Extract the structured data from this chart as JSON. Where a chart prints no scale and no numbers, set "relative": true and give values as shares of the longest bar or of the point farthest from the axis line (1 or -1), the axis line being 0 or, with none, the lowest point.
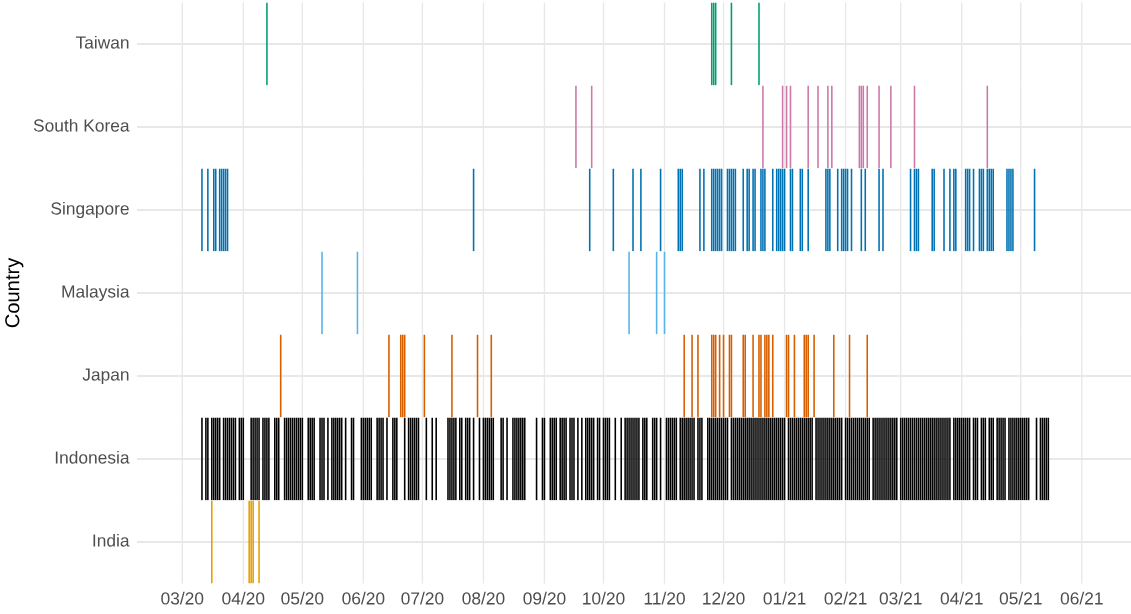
{
  "chart_data": [
    {
      "type": "bar",
      "relative": true,
      "ylabel": "Taiwan",
      "color": "#009e73",
      "grid": "x",
      "tick_labels": false,
      "ref_lines": [
        {
          "axis": "y",
          "value": 0.5,
          "color": "#e0e0e0"
        }
      ],
      "xlim": [
        "2020-02-07",
        "2021-06-26"
      ],
      "xticks": [
        {
          "value": "2020-03-01",
          "label": null
        },
        {
          "value": "2020-04-01",
          "label": null
        },
        {
          "value": "2020-05-01",
          "label": null
        },
        {
          "value": "2020-06-01",
          "label": null
        },
        {
          "value": "2020-07-01",
          "label": null
        },
        {
          "value": "2020-08-01",
          "label": null
        },
        {
          "value": "2020-09-01",
          "label": null
        },
        {
          "value": "2020-10-01",
          "label": null
        },
        {
          "value": "2020-11-01",
          "label": null
        },
        {
          "value": "2020-12-01",
          "label": null
        },
        {
          "value": "2021-01-01",
          "label": null
        },
        {
          "value": "2021-02-01",
          "label": null
        },
        {
          "value": "2021-03-01",
          "label": null
        },
        {
          "value": "2021-04-01",
          "label": null
        },
        {
          "value": "2021-05-01",
          "label": null
        },
        {
          "value": "2021-06-01",
          "label": null
        }
      ],
      "x": [
        "2020-04-13",
        "2020-11-25",
        "2020-11-26",
        "2020-11-27",
        "2020-12-05",
        "2020-12-19"
      ],
      "values": [
        1,
        1,
        1,
        1,
        1,
        1
      ]
    },
    {
      "type": "bar",
      "relative": true,
      "ylabel": "South Korea",
      "color": "#cc79a7",
      "grid": "x",
      "tick_labels": false,
      "ref_lines": [
        {
          "axis": "y",
          "value": 0.5,
          "color": "#e0e0e0"
        }
      ],
      "xlim": [
        "2020-02-07",
        "2021-06-26"
      ],
      "xticks": [
        {
          "value": "2020-03-01",
          "label": null
        },
        {
          "value": "2020-04-01",
          "label": null
        },
        {
          "value": "2020-05-01",
          "label": null
        },
        {
          "value": "2020-06-01",
          "label": null
        },
        {
          "value": "2020-07-01",
          "label": null
        },
        {
          "value": "2020-08-01",
          "label": null
        },
        {
          "value": "2020-09-01",
          "label": null
        },
        {
          "value": "2020-10-01",
          "label": null
        },
        {
          "value": "2020-11-01",
          "label": null
        },
        {
          "value": "2020-12-01",
          "label": null
        },
        {
          "value": "2021-01-01",
          "label": null
        },
        {
          "value": "2021-02-01",
          "label": null
        },
        {
          "value": "2021-03-01",
          "label": null
        },
        {
          "value": "2021-04-01",
          "label": null
        },
        {
          "value": "2021-05-01",
          "label": null
        },
        {
          "value": "2021-06-01",
          "label": null
        }
      ],
      "x": [
        "2020-09-17",
        "2020-09-25",
        "2020-12-21",
        "2020-12-31",
        "2021-01-02",
        "2021-01-04",
        "2021-01-13",
        "2021-01-18",
        "2021-01-23",
        "2021-01-25",
        "2021-02-08",
        "2021-02-09",
        "2021-02-10",
        "2021-02-12",
        "2021-02-18",
        "2021-02-24",
        "2021-03-08",
        "2021-04-14"
      ],
      "values": [
        1,
        1,
        1,
        1,
        1,
        1,
        1,
        1,
        1,
        1,
        1,
        1,
        1,
        1,
        1,
        1,
        1,
        1
      ]
    },
    {
      "type": "bar",
      "relative": true,
      "ylabel": "Singapore",
      "color": "#0072b2",
      "grid": "x",
      "tick_labels": false,
      "ref_lines": [
        {
          "axis": "y",
          "value": 0.5,
          "color": "#e0e0e0"
        }
      ],
      "xlim": [
        "2020-02-07",
        "2021-06-26"
      ],
      "xticks": [
        {
          "value": "2020-03-01",
          "label": null
        },
        {
          "value": "2020-04-01",
          "label": null
        },
        {
          "value": "2020-05-01",
          "label": null
        },
        {
          "value": "2020-06-01",
          "label": null
        },
        {
          "value": "2020-07-01",
          "label": null
        },
        {
          "value": "2020-08-01",
          "label": null
        },
        {
          "value": "2020-09-01",
          "label": null
        },
        {
          "value": "2020-10-01",
          "label": null
        },
        {
          "value": "2020-11-01",
          "label": null
        },
        {
          "value": "2020-12-01",
          "label": null
        },
        {
          "value": "2021-01-01",
          "label": null
        },
        {
          "value": "2021-02-01",
          "label": null
        },
        {
          "value": "2021-03-01",
          "label": null
        },
        {
          "value": "2021-04-01",
          "label": null
        },
        {
          "value": "2021-05-01",
          "label": null
        },
        {
          "value": "2021-06-01",
          "label": null
        }
      ],
      "x": [
        "2020-03-11",
        "2020-03-14",
        "2020-03-17",
        "2020-03-18",
        "2020-03-20",
        "2020-03-21",
        "2020-03-22",
        "2020-03-23",
        "2020-03-24",
        "2020-07-27",
        "2020-09-24",
        "2020-10-06",
        "2020-10-16",
        "2020-10-20",
        "2020-10-30",
        "2020-11-08",
        "2020-11-09",
        "2020-11-10",
        "2020-11-19",
        "2020-11-21",
        "2020-11-25",
        "2020-11-26",
        "2020-11-27",
        "2020-11-28",
        "2020-11-29",
        "2020-11-30",
        "2020-12-03",
        "2020-12-04",
        "2020-12-05",
        "2020-12-06",
        "2020-12-07",
        "2020-12-11",
        "2020-12-13",
        "2020-12-14",
        "2020-12-16",
        "2020-12-17",
        "2020-12-20",
        "2020-12-21",
        "2020-12-22",
        "2020-12-26",
        "2020-12-28",
        "2020-12-29",
        "2020-12-30",
        "2020-12-31",
        "2021-01-01",
        "2021-01-04",
        "2021-01-05",
        "2021-01-09",
        "2021-01-10",
        "2021-01-13",
        "2021-01-22",
        "2021-01-23",
        "2021-01-24",
        "2021-01-28",
        "2021-01-30",
        "2021-01-31",
        "2021-02-01",
        "2021-02-02",
        "2021-02-04",
        "2021-02-09",
        "2021-02-11",
        "2021-02-18",
        "2021-02-20",
        "2021-03-06",
        "2021-03-08",
        "2021-03-09",
        "2021-03-10",
        "2021-03-17",
        "2021-03-18",
        "2021-03-23",
        "2021-03-26",
        "2021-03-28",
        "2021-03-29",
        "2021-04-03",
        "2021-04-04",
        "2021-04-05",
        "2021-04-07",
        "2021-04-10",
        "2021-04-11",
        "2021-04-12",
        "2021-04-14",
        "2021-04-15",
        "2021-04-16",
        "2021-04-17",
        "2021-04-24",
        "2021-04-25",
        "2021-04-26",
        "2021-04-27",
        "2021-05-08"
      ],
      "values": [
        1,
        1,
        1,
        1,
        1,
        1,
        1,
        1,
        1,
        1,
        1,
        1,
        1,
        1,
        1,
        1,
        1,
        1,
        1,
        1,
        1,
        1,
        1,
        1,
        1,
        1,
        1,
        1,
        1,
        1,
        1,
        1,
        1,
        1,
        1,
        1,
        1,
        1,
        1,
        1,
        1,
        1,
        1,
        1,
        1,
        1,
        1,
        1,
        1,
        1,
        1,
        1,
        1,
        1,
        1,
        1,
        1,
        1,
        1,
        1,
        1,
        1,
        1,
        1,
        1,
        1,
        1,
        1,
        1,
        1,
        1,
        1,
        1,
        1,
        1,
        1,
        1,
        1,
        1,
        1,
        1,
        1,
        1,
        1,
        1,
        1,
        1,
        1,
        1
      ]
    },
    {
      "type": "bar",
      "relative": true,
      "ylabel": "Malaysia",
      "color": "#56b4e9",
      "grid": "x",
      "tick_labels": false,
      "ref_lines": [
        {
          "axis": "y",
          "value": 0.5,
          "color": "#e0e0e0"
        }
      ],
      "annotations": [
        "Country"
      ],
      "xlim": [
        "2020-02-07",
        "2021-06-26"
      ],
      "xticks": [
        {
          "value": "2020-03-01",
          "label": null
        },
        {
          "value": "2020-04-01",
          "label": null
        },
        {
          "value": "2020-05-01",
          "label": null
        },
        {
          "value": "2020-06-01",
          "label": null
        },
        {
          "value": "2020-07-01",
          "label": null
        },
        {
          "value": "2020-08-01",
          "label": null
        },
        {
          "value": "2020-09-01",
          "label": null
        },
        {
          "value": "2020-10-01",
          "label": null
        },
        {
          "value": "2020-11-01",
          "label": null
        },
        {
          "value": "2020-12-01",
          "label": null
        },
        {
          "value": "2021-01-01",
          "label": null
        },
        {
          "value": "2021-02-01",
          "label": null
        },
        {
          "value": "2021-03-01",
          "label": null
        },
        {
          "value": "2021-04-01",
          "label": null
        },
        {
          "value": "2021-05-01",
          "label": null
        },
        {
          "value": "2021-06-01",
          "label": null
        }
      ],
      "x": [
        "2020-05-11",
        "2020-05-29",
        "2020-10-14",
        "2020-10-28",
        "2020-11-01"
      ],
      "values": [
        1,
        1,
        1,
        1,
        1
      ]
    },
    {
      "type": "bar",
      "relative": true,
      "ylabel": "Japan",
      "color": "#d55e00",
      "grid": "x",
      "tick_labels": false,
      "ref_lines": [
        {
          "axis": "y",
          "value": 0.5,
          "color": "#e0e0e0"
        }
      ],
      "xlim": [
        "2020-02-07",
        "2021-06-26"
      ],
      "xticks": [
        {
          "value": "2020-03-01",
          "label": null
        },
        {
          "value": "2020-04-01",
          "label": null
        },
        {
          "value": "2020-05-01",
          "label": null
        },
        {
          "value": "2020-06-01",
          "label": null
        },
        {
          "value": "2020-07-01",
          "label": null
        },
        {
          "value": "2020-08-01",
          "label": null
        },
        {
          "value": "2020-09-01",
          "label": null
        },
        {
          "value": "2020-10-01",
          "label": null
        },
        {
          "value": "2020-11-01",
          "label": null
        },
        {
          "value": "2020-12-01",
          "label": null
        },
        {
          "value": "2021-01-01",
          "label": null
        },
        {
          "value": "2021-02-01",
          "label": null
        },
        {
          "value": "2021-03-01",
          "label": null
        },
        {
          "value": "2021-04-01",
          "label": null
        },
        {
          "value": "2021-05-01",
          "label": null
        },
        {
          "value": "2021-06-01",
          "label": null
        }
      ],
      "x": [
        "2020-04-20",
        "2020-06-14",
        "2020-06-20",
        "2020-06-21",
        "2020-06-22",
        "2020-07-02",
        "2020-07-16",
        "2020-07-29",
        "2020-08-05",
        "2020-11-11",
        "2020-11-15",
        "2020-11-18",
        "2020-11-25",
        "2020-11-26",
        "2020-11-27",
        "2020-11-29",
        "2020-12-01",
        "2020-12-04",
        "2020-12-05",
        "2020-12-11",
        "2020-12-12",
        "2020-12-16",
        "2020-12-19",
        "2020-12-20",
        "2020-12-22",
        "2020-12-23",
        "2020-12-24",
        "2020-12-26",
        "2021-01-02",
        "2021-01-03",
        "2021-01-06",
        "2021-01-11",
        "2021-01-12",
        "2021-01-13",
        "2021-01-16",
        "2021-01-26",
        "2021-02-03",
        "2021-02-12"
      ],
      "values": [
        1,
        1,
        1,
        1,
        1,
        1,
        1,
        1,
        1,
        1,
        1,
        1,
        1,
        1,
        1,
        1,
        1,
        1,
        1,
        1,
        1,
        1,
        1,
        1,
        1,
        1,
        1,
        1,
        1,
        1,
        1,
        1,
        1,
        1,
        1,
        1,
        1,
        1
      ]
    },
    {
      "type": "bar",
      "relative": true,
      "ylabel": "Indonesia",
      "color": "#000000",
      "grid": "x",
      "tick_labels": false,
      "ref_lines": [
        {
          "axis": "y",
          "value": 0.5,
          "color": "#e0e0e0"
        }
      ],
      "xlim": [
        "2020-02-07",
        "2021-06-26"
      ],
      "xticks": [
        {
          "value": "2020-03-01",
          "label": null
        },
        {
          "value": "2020-04-01",
          "label": null
        },
        {
          "value": "2020-05-01",
          "label": null
        },
        {
          "value": "2020-06-01",
          "label": null
        },
        {
          "value": "2020-07-01",
          "label": null
        },
        {
          "value": "2020-08-01",
          "label": null
        },
        {
          "value": "2020-09-01",
          "label": null
        },
        {
          "value": "2020-10-01",
          "label": null
        },
        {
          "value": "2020-11-01",
          "label": null
        },
        {
          "value": "2020-12-01",
          "label": null
        },
        {
          "value": "2021-01-01",
          "label": null
        },
        {
          "value": "2021-02-01",
          "label": null
        },
        {
          "value": "2021-03-01",
          "label": null
        },
        {
          "value": "2021-04-01",
          "label": null
        },
        {
          "value": "2021-05-01",
          "label": null
        },
        {
          "value": "2021-06-01",
          "label": null
        }
      ],
      "x": [
        "2020-03-11",
        "2020-03-13",
        "2020-03-14",
        "2020-03-16",
        "2020-03-17",
        "2020-03-18",
        "2020-03-19",
        "2020-03-20",
        "2020-03-22",
        "2020-03-23",
        "2020-03-24",
        "2020-03-25",
        "2020-03-26",
        "2020-03-27",
        "2020-03-28",
        "2020-03-30",
        "2020-03-31",
        "2020-04-01",
        "2020-04-05",
        "2020-04-06",
        "2020-04-07",
        "2020-04-08",
        "2020-04-09",
        "2020-04-11",
        "2020-04-12",
        "2020-04-13",
        "2020-04-14",
        "2020-04-17",
        "2020-04-18",
        "2020-04-19",
        "2020-04-22",
        "2020-04-23",
        "2020-04-24",
        "2020-04-25",
        "2020-04-26",
        "2020-04-27",
        "2020-04-28",
        "2020-04-29",
        "2020-04-30",
        "2020-05-01",
        "2020-05-04",
        "2020-05-05",
        "2020-05-06",
        "2020-05-07",
        "2020-05-10",
        "2020-05-11",
        "2020-05-12",
        "2020-05-14",
        "2020-05-16",
        "2020-05-17",
        "2020-05-18",
        "2020-05-19",
        "2020-05-20",
        "2020-05-21",
        "2020-05-23",
        "2020-05-26",
        "2020-05-27",
        "2020-05-31",
        "2020-06-01",
        "2020-06-02",
        "2020-06-03",
        "2020-06-04",
        "2020-06-05",
        "2020-06-08",
        "2020-06-09",
        "2020-06-10",
        "2020-06-11",
        "2020-06-13",
        "2020-06-16",
        "2020-06-17",
        "2020-06-18",
        "2020-06-22",
        "2020-06-24",
        "2020-06-25",
        "2020-06-26",
        "2020-06-27",
        "2020-06-28",
        "2020-06-29",
        "2020-07-03",
        "2020-07-06",
        "2020-07-08",
        "2020-07-14",
        "2020-07-15",
        "2020-07-16",
        "2020-07-17",
        "2020-07-18",
        "2020-07-20",
        "2020-07-21",
        "2020-07-23",
        "2020-07-24",
        "2020-07-25",
        "2020-07-27",
        "2020-07-30",
        "2020-08-01",
        "2020-08-02",
        "2020-08-03",
        "2020-08-04",
        "2020-08-05",
        "2020-08-06",
        "2020-08-10",
        "2020-08-11",
        "2020-08-13",
        "2020-08-16",
        "2020-08-17",
        "2020-08-18",
        "2020-08-19",
        "2020-08-20",
        "2020-08-21",
        "2020-08-22",
        "2020-08-28",
        "2020-08-31",
        "2020-09-01",
        "2020-09-04",
        "2020-09-05",
        "2020-09-06",
        "2020-09-07",
        "2020-09-09",
        "2020-09-10",
        "2020-09-11",
        "2020-09-12",
        "2020-09-14",
        "2020-09-15",
        "2020-09-16",
        "2020-09-18",
        "2020-09-20",
        "2020-09-22",
        "2020-09-23",
        "2020-09-24",
        "2020-09-25",
        "2020-09-26",
        "2020-09-28",
        "2020-09-29",
        "2020-10-01",
        "2020-10-02",
        "2020-10-03",
        "2020-10-04",
        "2020-10-07",
        "2020-10-10",
        "2020-10-12",
        "2020-10-13",
        "2020-10-14",
        "2020-10-15",
        "2020-10-16",
        "2020-10-17",
        "2020-10-18",
        "2020-10-19",
        "2020-10-21",
        "2020-10-22",
        "2020-10-23",
        "2020-10-26",
        "2020-10-27",
        "2020-10-28",
        "2020-10-30",
        "2020-11-02",
        "2020-11-03",
        "2020-11-04",
        "2020-11-05",
        "2020-11-06",
        "2020-11-07",
        "2020-11-09",
        "2020-11-10",
        "2020-11-11",
        "2020-11-12",
        "2020-11-13",
        "2020-11-14",
        "2020-11-15",
        "2020-11-16",
        "2020-11-18",
        "2020-11-19",
        "2020-11-20",
        "2020-11-23",
        "2020-11-24",
        "2020-11-25",
        "2020-11-26",
        "2020-11-27",
        "2020-11-28",
        "2020-11-29",
        "2020-11-30",
        "2020-12-01",
        "2020-12-02",
        "2020-12-03",
        "2020-12-05",
        "2020-12-06",
        "2020-12-07",
        "2020-12-08",
        "2020-12-09",
        "2020-12-10",
        "2020-12-11",
        "2020-12-12",
        "2020-12-13",
        "2020-12-14",
        "2020-12-15",
        "2020-12-16",
        "2020-12-17",
        "2020-12-18",
        "2020-12-19",
        "2020-12-20",
        "2020-12-21",
        "2020-12-22",
        "2020-12-23",
        "2020-12-24",
        "2020-12-25",
        "2020-12-26",
        "2020-12-27",
        "2020-12-28",
        "2020-12-29",
        "2020-12-30",
        "2020-12-31",
        "2021-01-01",
        "2021-01-03",
        "2021-01-04",
        "2021-01-05",
        "2021-01-06",
        "2021-01-07",
        "2021-01-08",
        "2021-01-09",
        "2021-01-10",
        "2021-01-11",
        "2021-01-12",
        "2021-01-13",
        "2021-01-14",
        "2021-01-15",
        "2021-01-17",
        "2021-01-18",
        "2021-01-19",
        "2021-01-20",
        "2021-01-21",
        "2021-01-22",
        "2021-01-23",
        "2021-01-24",
        "2021-01-25",
        "2021-01-26",
        "2021-01-27",
        "2021-01-28",
        "2021-01-29",
        "2021-01-30",
        "2021-02-01",
        "2021-02-02",
        "2021-02-03",
        "2021-02-04",
        "2021-02-05",
        "2021-02-06",
        "2021-02-07",
        "2021-02-08",
        "2021-02-09",
        "2021-02-10",
        "2021-02-11",
        "2021-02-12",
        "2021-02-13",
        "2021-02-15",
        "2021-02-16",
        "2021-02-17",
        "2021-02-18",
        "2021-02-19",
        "2021-02-20",
        "2021-02-21",
        "2021-02-22",
        "2021-02-23",
        "2021-02-24",
        "2021-02-25",
        "2021-02-26",
        "2021-02-27",
        "2021-03-01",
        "2021-03-02",
        "2021-03-03",
        "2021-03-04",
        "2021-03-05",
        "2021-03-06",
        "2021-03-07",
        "2021-03-08",
        "2021-03-09",
        "2021-03-10",
        "2021-03-11",
        "2021-03-12",
        "2021-03-13",
        "2021-03-14",
        "2021-03-15",
        "2021-03-16",
        "2021-03-17",
        "2021-03-18",
        "2021-03-19",
        "2021-03-20",
        "2021-03-21",
        "2021-03-22",
        "2021-03-23",
        "2021-03-24",
        "2021-03-25",
        "2021-03-26",
        "2021-03-28",
        "2021-03-29",
        "2021-03-30",
        "2021-03-31",
        "2021-04-01",
        "2021-04-02",
        "2021-04-03",
        "2021-04-04",
        "2021-04-05",
        "2021-04-07",
        "2021-04-08",
        "2021-04-09",
        "2021-04-11",
        "2021-04-12",
        "2021-04-13",
        "2021-04-15",
        "2021-04-16",
        "2021-04-17",
        "2021-04-19",
        "2021-04-20",
        "2021-04-21",
        "2021-04-22",
        "2021-04-23",
        "2021-04-25",
        "2021-04-26",
        "2021-04-27",
        "2021-04-28",
        "2021-04-29",
        "2021-04-30",
        "2021-05-01",
        "2021-05-02",
        "2021-05-03",
        "2021-05-04",
        "2021-05-05",
        "2021-05-09",
        "2021-05-11",
        "2021-05-12",
        "2021-05-13",
        "2021-05-14",
        "2021-05-15"
      ],
      "values": [
        1,
        1,
        1,
        1,
        1,
        1,
        1,
        1,
        1,
        1,
        1,
        1,
        1,
        1,
        1,
        1,
        1,
        1,
        1,
        1,
        1,
        1,
        1,
        1,
        1,
        1,
        1,
        1,
        1,
        1,
        1,
        1,
        1,
        1,
        1,
        1,
        1,
        1,
        1,
        1,
        1,
        1,
        1,
        1,
        1,
        1,
        1,
        1,
        1,
        1,
        1,
        1,
        1,
        1,
        1,
        1,
        1,
        1,
        1,
        1,
        1,
        1,
        1,
        1,
        1,
        1,
        1,
        1,
        1,
        1,
        1,
        1,
        1,
        1,
        1,
        1,
        1,
        1,
        1,
        1,
        1,
        1,
        1,
        1,
        1,
        1,
        1,
        1,
        1,
        1,
        1,
        1,
        1,
        1,
        1,
        1,
        1,
        1,
        1,
        1,
        1,
        1,
        1,
        1,
        1,
        1,
        1,
        1,
        1,
        1,
        1,
        1,
        1,
        1,
        1,
        1,
        1,
        1,
        1,
        1,
        1,
        1,
        1,
        1,
        1,
        1,
        1,
        1,
        1,
        1,
        1,
        1,
        1,
        1,
        1,
        1,
        1,
        1,
        1,
        1,
        1,
        1,
        1,
        1,
        1,
        1,
        1,
        1,
        1,
        1,
        1,
        1,
        1,
        1,
        1,
        1,
        1,
        1,
        1,
        1,
        1,
        1,
        1,
        1,
        1,
        1,
        1,
        1,
        1,
        1,
        1,
        1,
        1,
        1,
        1,
        1,
        1,
        1,
        1,
        1,
        1,
        1,
        1,
        1,
        1,
        1,
        1,
        1,
        1,
        1,
        1,
        1,
        1,
        1,
        1,
        1,
        1,
        1,
        1,
        1,
        1,
        1,
        1,
        1,
        1,
        1,
        1,
        1,
        1,
        1,
        1,
        1,
        1,
        1,
        1,
        1,
        1,
        1,
        1,
        1,
        1,
        1,
        1,
        1,
        1,
        1,
        1,
        1,
        1,
        1,
        1,
        1,
        1,
        1,
        1,
        1,
        1,
        1,
        1,
        1,
        1,
        1,
        1,
        1,
        1,
        1,
        1,
        1,
        1,
        1,
        1,
        1,
        1,
        1,
        1,
        1,
        1,
        1,
        1,
        1,
        1,
        1,
        1,
        1,
        1,
        1,
        1,
        1,
        1,
        1,
        1,
        1,
        1,
        1,
        1,
        1,
        1,
        1,
        1,
        1,
        1,
        1,
        1,
        1,
        1,
        1,
        1,
        1,
        1,
        1,
        1,
        1,
        1,
        1,
        1,
        1,
        1,
        1,
        1,
        1,
        1,
        1,
        1,
        1,
        1,
        1,
        1,
        1,
        1,
        1,
        1,
        1,
        1,
        1,
        1,
        1,
        1,
        1,
        1,
        1,
        1,
        1,
        1,
        1,
        1,
        1,
        1,
        1
      ]
    },
    {
      "type": "bar",
      "relative": true,
      "ylabel": "India",
      "color": "#e69f00",
      "grid": "x",
      "tick_labels": "x",
      "ref_lines": [
        {
          "axis": "y",
          "value": 0.5,
          "color": "#e0e0e0"
        }
      ],
      "xlim": [
        "2020-02-07",
        "2021-06-26"
      ],
      "xticks": [
        {
          "value": "2020-03-01",
          "label": "03/20"
        },
        {
          "value": "2020-04-01",
          "label": "04/20"
        },
        {
          "value": "2020-05-01",
          "label": "05/20"
        },
        {
          "value": "2020-06-01",
          "label": "06/20"
        },
        {
          "value": "2020-07-01",
          "label": "07/20"
        },
        {
          "value": "2020-08-01",
          "label": "08/20"
        },
        {
          "value": "2020-09-01",
          "label": "09/20"
        },
        {
          "value": "2020-10-01",
          "label": "10/20"
        },
        {
          "value": "2020-11-01",
          "label": "11/20"
        },
        {
          "value": "2020-12-01",
          "label": "12/20"
        },
        {
          "value": "2021-01-01",
          "label": "01/21"
        },
        {
          "value": "2021-02-01",
          "label": "02/21"
        },
        {
          "value": "2021-03-01",
          "label": "03/21"
        },
        {
          "value": "2021-04-01",
          "label": "04/21"
        },
        {
          "value": "2021-05-01",
          "label": "05/21"
        },
        {
          "value": "2021-06-01",
          "label": "06/21"
        }
      ],
      "x": [
        "2020-03-16",
        "2020-04-04",
        "2020-04-05",
        "2020-04-06",
        "2020-04-09"
      ],
      "values": [
        1,
        1,
        1,
        1,
        1
      ]
    }
  ]
}
